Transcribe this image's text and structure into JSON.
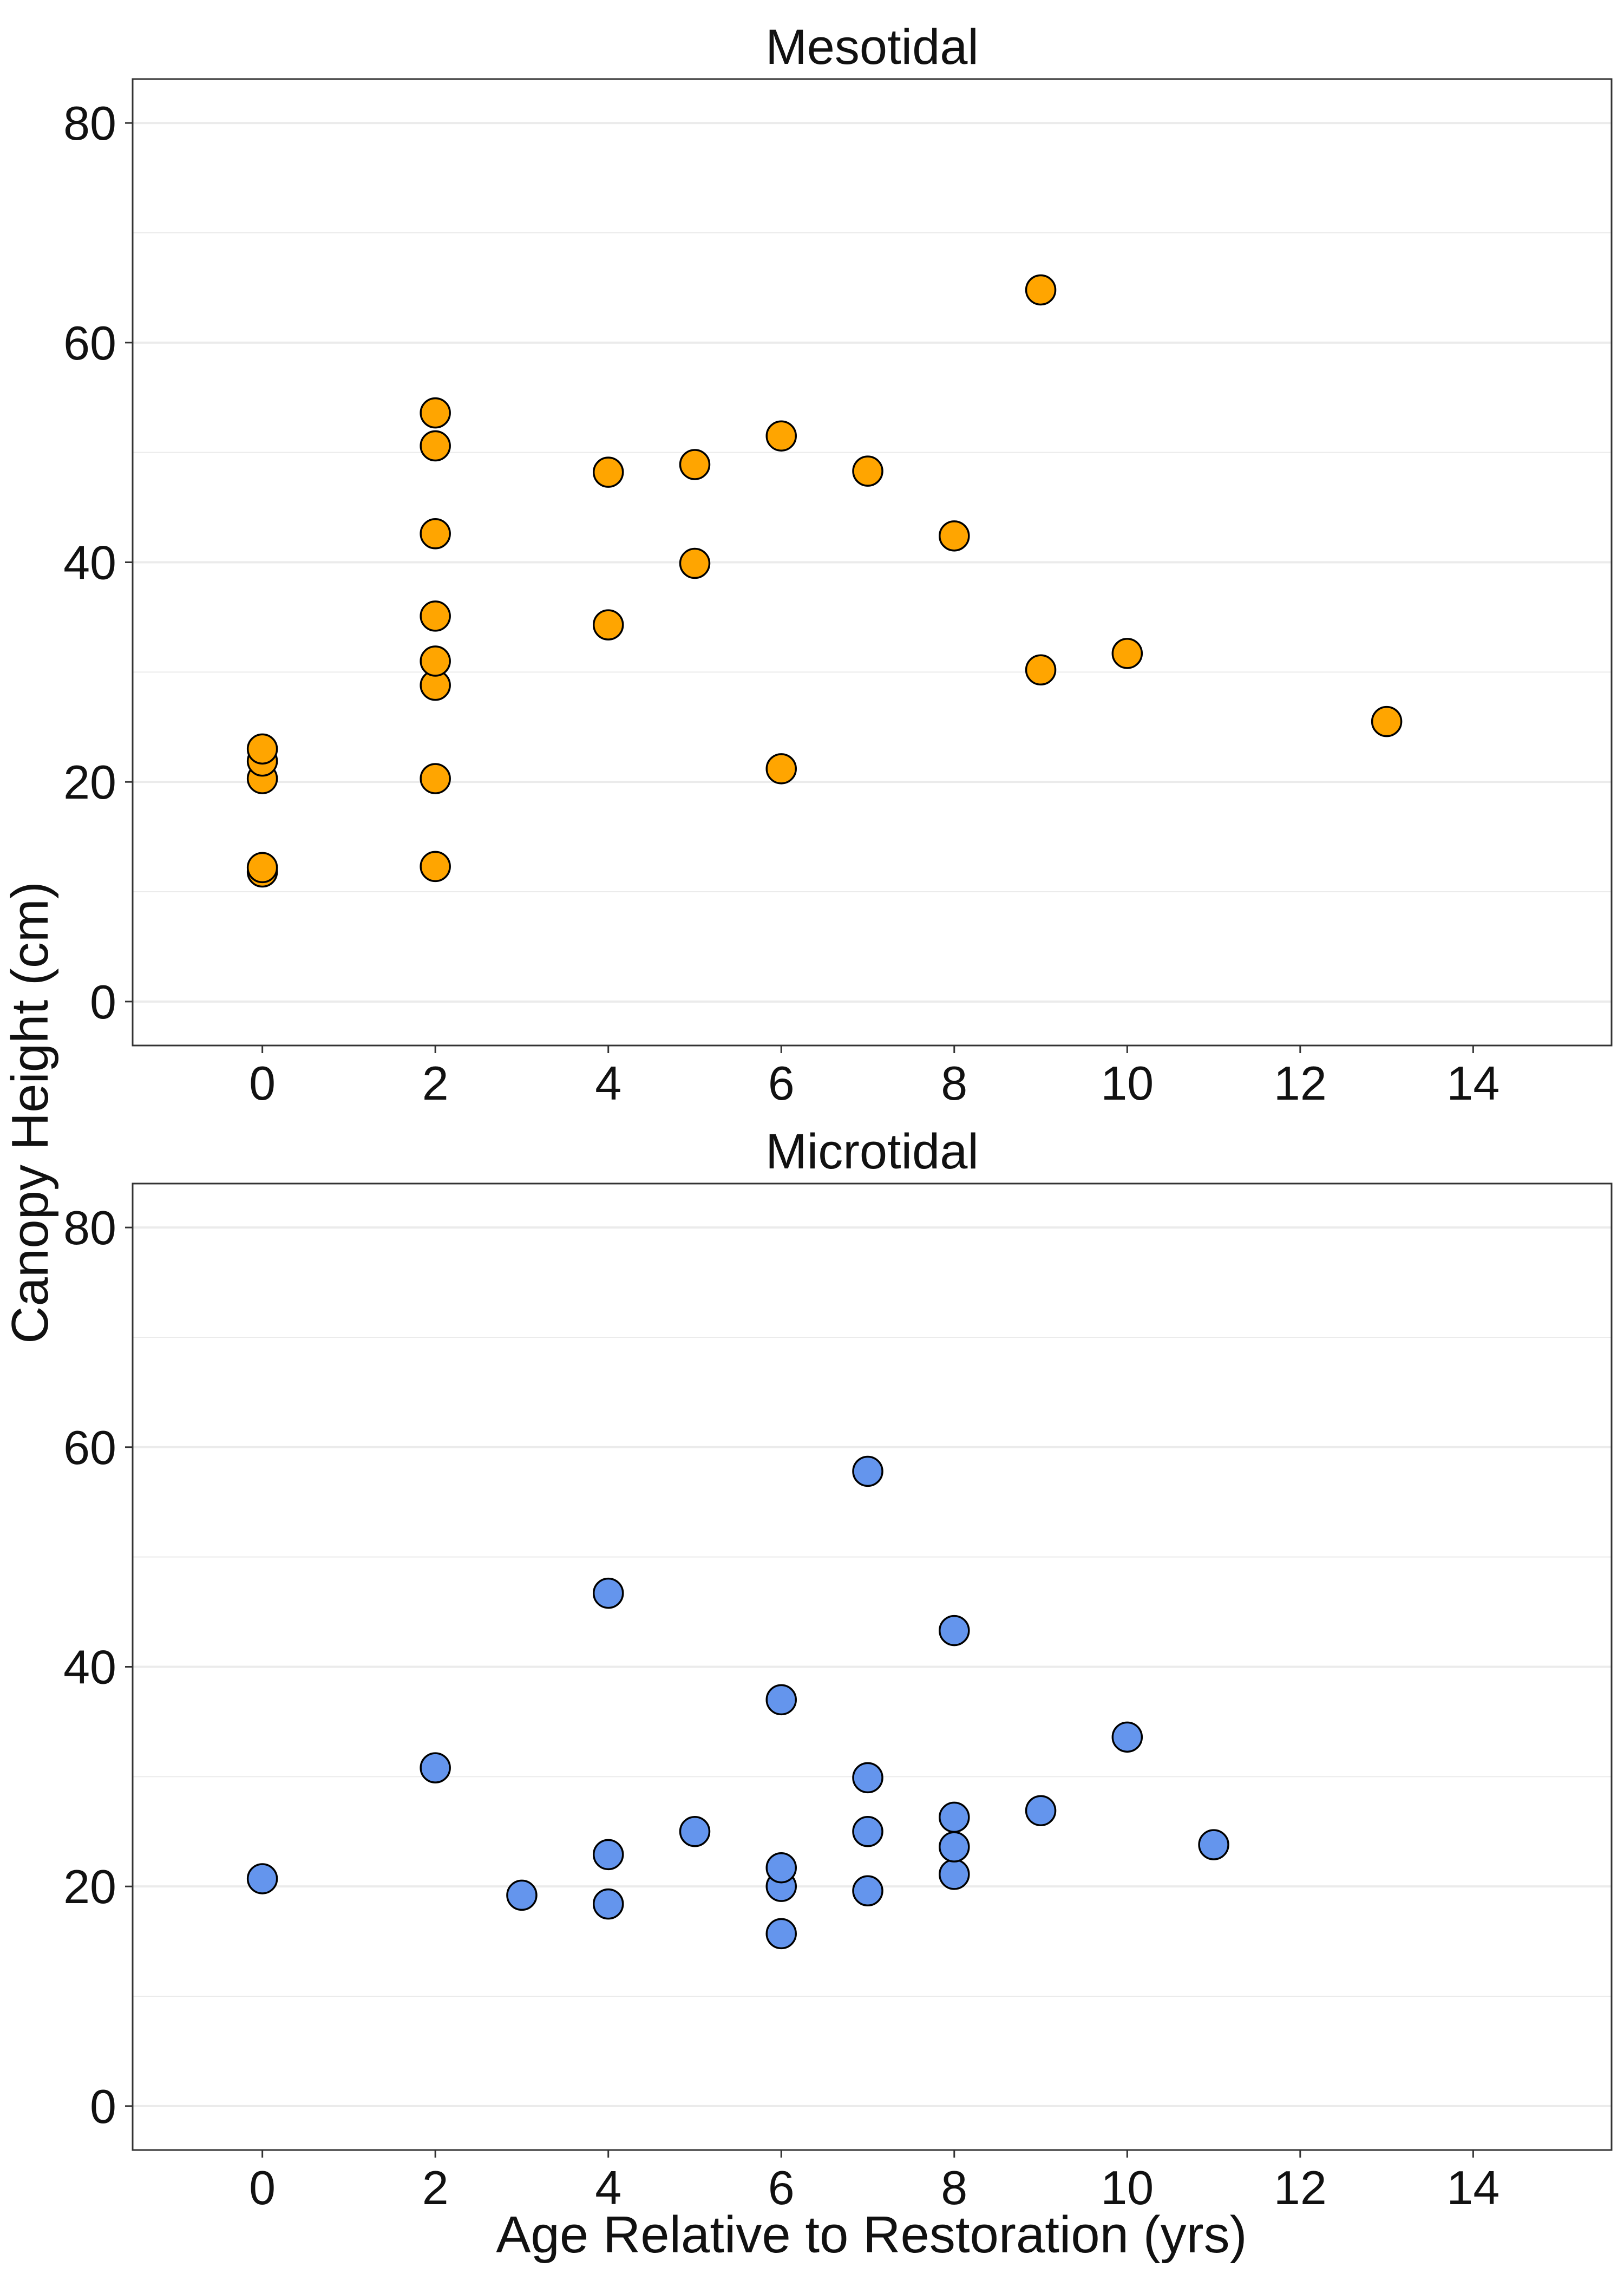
{
  "figure": {
    "ylabel": "Canopy Height (cm)",
    "xlabel": "Age Relative to Restoration (yrs)"
  },
  "colors": {
    "mesotidal": "#FFA500",
    "microtidal": "#6495ED",
    "point_stroke": "#000000",
    "gridline": "#EBEBEB",
    "panel_border": "#333333"
  },
  "chart_data": [
    {
      "type": "scatter",
      "title": "Mesotidal",
      "xlabel": "",
      "ylabel": "",
      "xlim": [
        -1.5,
        15.6
      ],
      "ylim": [
        -4,
        84
      ],
      "x_ticks": [
        0,
        2,
        4,
        6,
        8,
        10,
        12,
        14
      ],
      "y_ticks": [
        0,
        20,
        40,
        60,
        80
      ],
      "grid": "horizontal major and minor",
      "series": [
        {
          "color": "#FFA500",
          "points": [
            {
              "x": 0,
              "y": 11.8
            },
            {
              "x": 0,
              "y": 12.2
            },
            {
              "x": 0,
              "y": 20.3
            },
            {
              "x": 0,
              "y": 21.9
            },
            {
              "x": 0,
              "y": 23.0
            },
            {
              "x": 2,
              "y": 12.3
            },
            {
              "x": 2,
              "y": 20.3
            },
            {
              "x": 2,
              "y": 28.8
            },
            {
              "x": 2,
              "y": 31.0
            },
            {
              "x": 2,
              "y": 35.1
            },
            {
              "x": 2,
              "y": 42.6
            },
            {
              "x": 2,
              "y": 50.6
            },
            {
              "x": 2,
              "y": 53.6
            },
            {
              "x": 4,
              "y": 34.3
            },
            {
              "x": 4,
              "y": 48.2
            },
            {
              "x": 5,
              "y": 39.9
            },
            {
              "x": 5,
              "y": 48.9
            },
            {
              "x": 6,
              "y": 21.2
            },
            {
              "x": 6,
              "y": 51.5
            },
            {
              "x": 7,
              "y": 48.3
            },
            {
              "x": 8,
              "y": 42.4
            },
            {
              "x": 9,
              "y": 30.2
            },
            {
              "x": 9,
              "y": 64.8
            },
            {
              "x": 10,
              "y": 31.7
            },
            {
              "x": 13,
              "y": 25.5
            }
          ]
        }
      ]
    },
    {
      "type": "scatter",
      "title": "Microtidal",
      "xlabel": "Age Relative to Restoration (yrs)",
      "ylabel": "",
      "xlim": [
        -1.5,
        15.6
      ],
      "ylim": [
        -4,
        84
      ],
      "x_ticks": [
        0,
        2,
        4,
        6,
        8,
        10,
        12,
        14
      ],
      "y_ticks": [
        0,
        20,
        40,
        60,
        80
      ],
      "grid": "horizontal major and minor",
      "series": [
        {
          "color": "#6495ED",
          "points": [
            {
              "x": 0,
              "y": 20.7
            },
            {
              "x": 2,
              "y": 30.8
            },
            {
              "x": 3,
              "y": 19.2
            },
            {
              "x": 4,
              "y": 18.4
            },
            {
              "x": 4,
              "y": 22.9
            },
            {
              "x": 4,
              "y": 46.7
            },
            {
              "x": 5,
              "y": 25.0
            },
            {
              "x": 6,
              "y": 15.7
            },
            {
              "x": 6,
              "y": 20.0
            },
            {
              "x": 6,
              "y": 21.7
            },
            {
              "x": 6,
              "y": 37.0
            },
            {
              "x": 7,
              "y": 19.6
            },
            {
              "x": 7,
              "y": 25.0
            },
            {
              "x": 7,
              "y": 29.9
            },
            {
              "x": 7,
              "y": 57.8
            },
            {
              "x": 8,
              "y": 21.1
            },
            {
              "x": 8,
              "y": 23.6
            },
            {
              "x": 8,
              "y": 26.3
            },
            {
              "x": 8,
              "y": 43.3
            },
            {
              "x": 9,
              "y": 26.9
            },
            {
              "x": 10,
              "y": 33.6
            },
            {
              "x": 11,
              "y": 23.8
            }
          ]
        }
      ]
    }
  ]
}
